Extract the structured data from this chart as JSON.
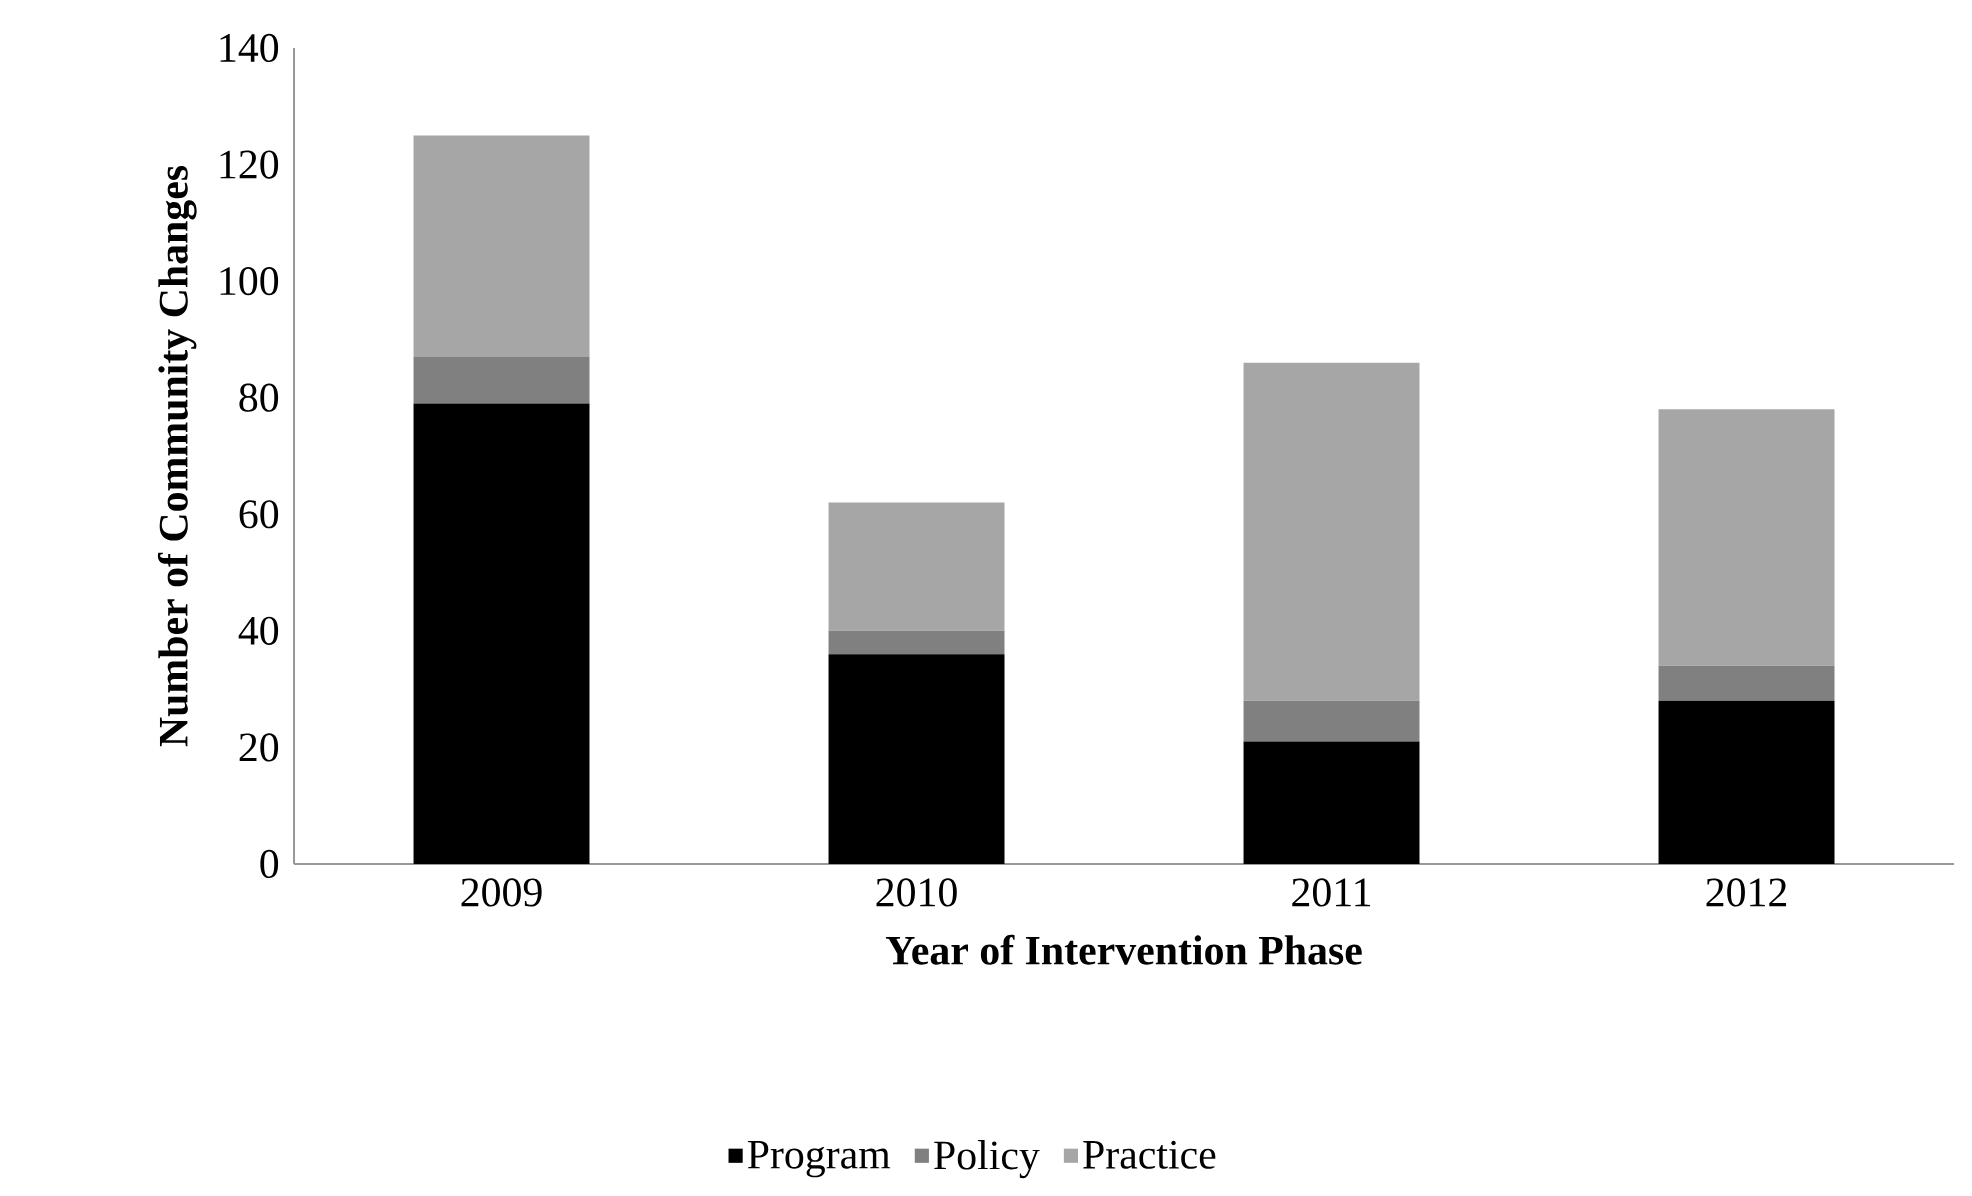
{
  "chart_data": {
    "type": "bar",
    "stacked": true,
    "xlabel": "Year of Intervention Phase",
    "ylabel": "Number of Community Changes",
    "categories": [
      "2009",
      "2010",
      "2011",
      "2012"
    ],
    "series": [
      {
        "name": "Program",
        "color": "#000000",
        "values": [
          79,
          36,
          21,
          28
        ]
      },
      {
        "name": "Policy",
        "color": "#808080",
        "values": [
          8,
          4,
          7,
          6
        ]
      },
      {
        "name": "Practice",
        "color": "#a6a6a6",
        "values": [
          38,
          22,
          58,
          44
        ]
      }
    ],
    "ylim": [
      0,
      140
    ],
    "yticks": [
      0,
      20,
      40,
      60,
      80,
      100,
      120,
      140
    ],
    "grid": false,
    "legend": "bottom"
  }
}
